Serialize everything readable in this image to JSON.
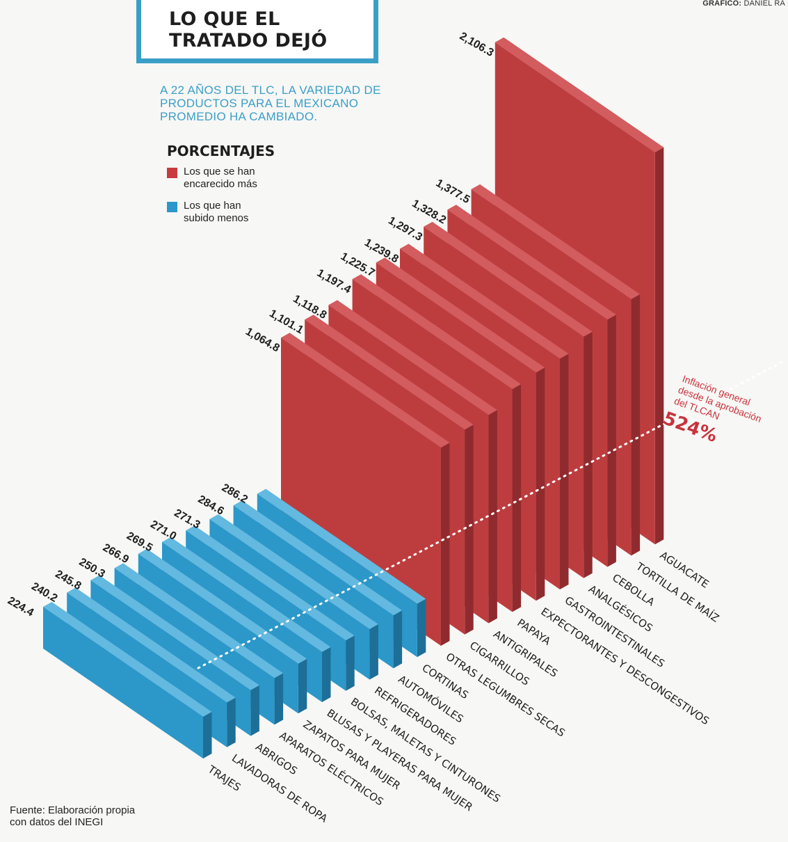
{
  "header": {
    "credit_label": "GRÁFICO:",
    "credit_name": "DANIEL RA",
    "title_line1": "LO QUE EL",
    "title_line2": "TRATADO DEJÓ",
    "subtitle_lines": [
      "A 22 AÑOS DEL TLC, LA  VARIEDAD DE",
      "PRODUCTOS PARA EL MEXICANO",
      "PROMEDIO HA CAMBIADO."
    ]
  },
  "legend": {
    "title": "PORCENTAJES",
    "items": [
      {
        "label_line1": "Los que se han",
        "label_line2": "encarecido más",
        "color": "#c93a3f"
      },
      {
        "label_line1": "Los que han",
        "label_line2": "subido menos",
        "color": "#2c97c9"
      }
    ]
  },
  "annotation": {
    "line1": "Inflación general",
    "line2": "desde la aprobación",
    "line3": "del TLCAN",
    "value_label": "524%",
    "value": 524,
    "color": "#c8333c"
  },
  "footer": {
    "source_line1": "Fuente: Elaboración propia",
    "source_line2": "con datos del INEGI"
  },
  "colors": {
    "red_front": "#bd3d3f",
    "red_top": "#d25c5e",
    "red_side": "#8f2b2e",
    "blue_front": "#2c97c9",
    "blue_top": "#63b9df",
    "blue_side": "#1d6f98"
  },
  "chart_data": {
    "type": "bar",
    "title": "PORCENTAJES",
    "unit": "%",
    "series": [
      {
        "name": "Los que se han encarecido más",
        "categories": [
          "OTRAS LEGUMBRES SECAS",
          "CIGARRILLOS",
          "ANTIGRIPALES",
          "PAPAYA",
          "EXPECTORANTES Y DESCONGESTIVOS",
          "GASTROINTESTINALES",
          "ANALGÉSICOS",
          "CEBOLLA",
          "TORTILLA DE MAÍZ",
          "AGUACATE"
        ],
        "values": [
          1064.8,
          1101.1,
          1118.8,
          1197.4,
          1225.7,
          1239.8,
          1297.3,
          1328.2,
          1377.5,
          2106.3
        ],
        "labels": [
          "1,064.8",
          "1,101.1",
          "1,118.8",
          "1,197.4",
          "1,225.7",
          "1,239.8",
          "1,297.3",
          "1,328.2",
          "1,377.5",
          "2,106.3"
        ]
      },
      {
        "name": "Los que han subido menos",
        "categories": [
          "TRAJES",
          "LAVADORAS DE ROPA",
          "ABRIGOS",
          "APARATOS ELÉCTRICOS",
          "ZAPATOS PARA MUJER",
          "BLUSAS Y PLAYERAS PARA MUJER",
          "BOLSAS, MALETAS Y CINTURONES",
          "REFRIGERADORES",
          "AUTOMÓVILES",
          "CORTINAS"
        ],
        "values": [
          224.4,
          240.2,
          245.8,
          250.3,
          266.9,
          269.5,
          271.0,
          271.3,
          284.6,
          286.2
        ],
        "labels": [
          "224.4",
          "240.2",
          "245.8",
          "250.3",
          "266.9",
          "269.5",
          "271.0",
          "271.3",
          "284.6",
          "286.2"
        ]
      }
    ],
    "reference_line": {
      "label": "Inflación general desde la aprobación del TLCAN",
      "value": 524
    }
  }
}
